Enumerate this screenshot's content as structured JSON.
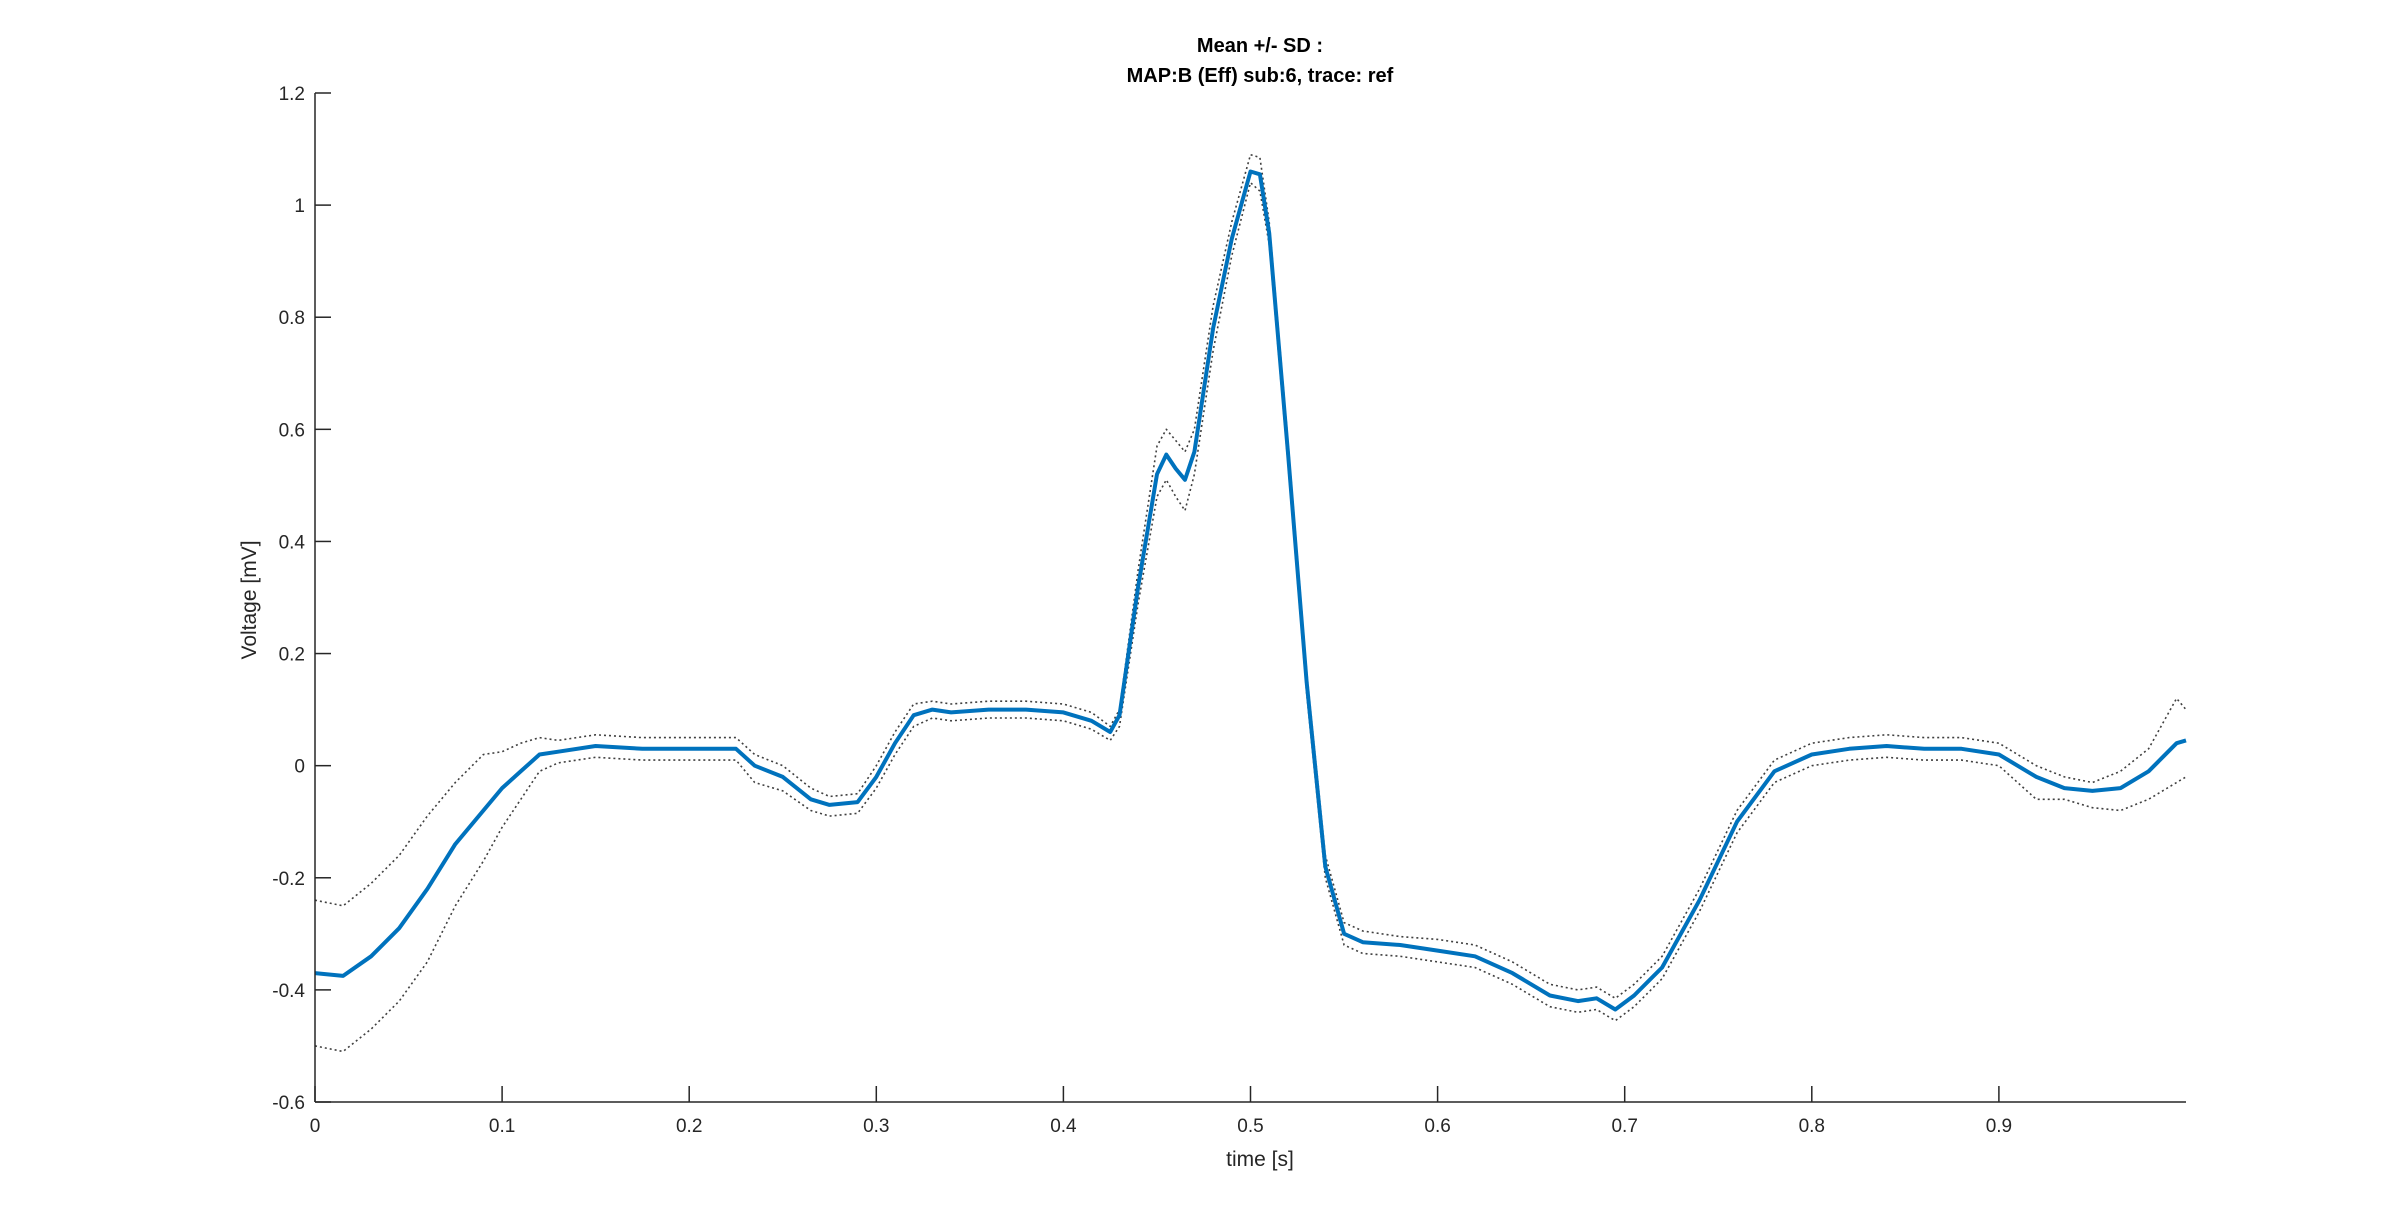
{
  "chart_data": {
    "type": "line",
    "title": "Mean +/- SD :",
    "subtitle": "MAP:B (Eff) sub:6, trace: ref",
    "xlabel": "time [s]",
    "ylabel": "Voltage [mV]",
    "xlim": [
      0,
      1.0
    ],
    "ylim": [
      -0.6,
      1.2
    ],
    "xticks": [
      "0",
      "0.1",
      "0.2",
      "0.3",
      "0.4",
      "0.5",
      "0.6",
      "0.7",
      "0.8",
      "0.9"
    ],
    "yticks": [
      "-0.6",
      "-0.4",
      "-0.2",
      "0",
      "0.2",
      "0.4",
      "0.6",
      "0.8",
      "1",
      "1.2"
    ],
    "grid": false,
    "colors": {
      "mean": "#0072BD",
      "sd": "#404040",
      "axis": "#262626"
    },
    "x": [
      0.0,
      0.015,
      0.03,
      0.045,
      0.06,
      0.075,
      0.09,
      0.1,
      0.11,
      0.12,
      0.13,
      0.15,
      0.175,
      0.2,
      0.225,
      0.235,
      0.25,
      0.265,
      0.275,
      0.29,
      0.3,
      0.31,
      0.32,
      0.33,
      0.34,
      0.36,
      0.38,
      0.4,
      0.415,
      0.425,
      0.43,
      0.44,
      0.45,
      0.455,
      0.46,
      0.465,
      0.47,
      0.48,
      0.49,
      0.5,
      0.505,
      0.51,
      0.52,
      0.53,
      0.54,
      0.55,
      0.56,
      0.58,
      0.6,
      0.62,
      0.64,
      0.66,
      0.675,
      0.685,
      0.695,
      0.705,
      0.72,
      0.74,
      0.76,
      0.78,
      0.8,
      0.82,
      0.84,
      0.86,
      0.88,
      0.9,
      0.92,
      0.935,
      0.95,
      0.965,
      0.98,
      0.995,
      1.0
    ],
    "series": [
      {
        "values": [
          -0.37,
          -0.375,
          -0.34,
          -0.29,
          -0.22,
          -0.14,
          -0.08,
          -0.04,
          -0.01,
          0.02,
          0.025,
          0.035,
          0.03,
          0.03,
          0.03,
          0.0,
          -0.02,
          -0.06,
          -0.07,
          -0.065,
          -0.02,
          0.04,
          0.09,
          0.1,
          0.095,
          0.1,
          0.1,
          0.095,
          0.08,
          0.06,
          0.09,
          0.32,
          0.52,
          0.555,
          0.53,
          0.51,
          0.56,
          0.78,
          0.94,
          1.06,
          1.055,
          0.95,
          0.56,
          0.15,
          -0.18,
          -0.3,
          -0.315,
          -0.32,
          -0.33,
          -0.34,
          -0.37,
          -0.41,
          -0.42,
          -0.415,
          -0.435,
          -0.41,
          -0.36,
          -0.24,
          -0.1,
          -0.01,
          0.02,
          0.03,
          0.035,
          0.03,
          0.03,
          0.02,
          -0.02,
          -0.04,
          -0.045,
          -0.04,
          -0.01,
          0.04,
          0.045
        ]
      },
      {
        "name": "",
        "values": [
          -0.24,
          -0.25,
          -0.21,
          -0.16,
          -0.09,
          -0.03,
          0.02,
          0.025,
          0.04,
          0.05,
          0.045,
          0.055,
          0.05,
          0.05,
          0.05,
          0.02,
          0.0,
          -0.04,
          -0.055,
          -0.05,
          0.0,
          0.06,
          0.11,
          0.115,
          0.11,
          0.115,
          0.115,
          0.11,
          0.095,
          0.07,
          0.1,
          0.35,
          0.57,
          0.6,
          0.58,
          0.56,
          0.6,
          0.82,
          0.97,
          1.09,
          1.085,
          0.97,
          0.58,
          0.17,
          -0.16,
          -0.28,
          -0.295,
          -0.305,
          -0.31,
          -0.32,
          -0.35,
          -0.39,
          -0.4,
          -0.395,
          -0.415,
          -0.39,
          -0.34,
          -0.22,
          -0.08,
          0.01,
          0.04,
          0.05,
          0.055,
          0.05,
          0.05,
          0.04,
          0.0,
          -0.02,
          -0.03,
          -0.01,
          0.03,
          0.12,
          0.1
        ]
      },
      {
        "name": "",
        "values": [
          -0.5,
          -0.51,
          -0.47,
          -0.42,
          -0.35,
          -0.25,
          -0.17,
          -0.11,
          -0.06,
          -0.01,
          0.005,
          0.015,
          0.01,
          0.01,
          0.01,
          -0.03,
          -0.045,
          -0.08,
          -0.09,
          -0.085,
          -0.04,
          0.02,
          0.07,
          0.085,
          0.08,
          0.085,
          0.085,
          0.08,
          0.065,
          0.045,
          0.07,
          0.29,
          0.48,
          0.51,
          0.48,
          0.455,
          0.52,
          0.74,
          0.91,
          1.04,
          1.025,
          0.93,
          0.54,
          0.13,
          -0.2,
          -0.32,
          -0.335,
          -0.34,
          -0.35,
          -0.36,
          -0.39,
          -0.43,
          -0.44,
          -0.435,
          -0.455,
          -0.43,
          -0.38,
          -0.26,
          -0.12,
          -0.03,
          0.0,
          0.01,
          0.015,
          0.01,
          0.01,
          0.0,
          -0.06,
          -0.06,
          -0.075,
          -0.08,
          -0.06,
          -0.03,
          -0.02
        ]
      }
    ]
  }
}
